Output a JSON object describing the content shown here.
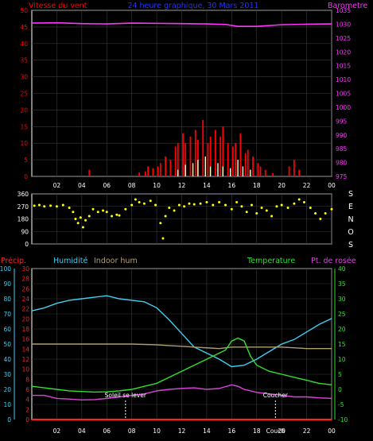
{
  "colors": {
    "background": "#000000",
    "frame": "#ffffff",
    "grid": "#3a3a3a",
    "wind": "#ff0000",
    "wind_gust_light": "#ffffc8",
    "barometer": "#ff33ff",
    "direction": "#ffff00",
    "precip": "#ff2020",
    "humidity": "#40d0f0",
    "indoor_hum": "#b0a070",
    "temperature": "#30e030",
    "dew_point": "#dd44dd",
    "title": "#2233ff",
    "sun_marker": "#ffffff"
  },
  "chart_data": [
    {
      "type": "bar",
      "title": "24 heure graphique, 30 Mars 2011",
      "left_axis_label": "Vitesse du vent",
      "right_axis_label": "Barometre",
      "x_ticks": [
        "02",
        "04",
        "06",
        "08",
        "10",
        "12",
        "14",
        "16",
        "18",
        "20",
        "22",
        "00"
      ],
      "x_range_hours": [
        0,
        24
      ],
      "left_ticks": [
        0,
        5,
        10,
        15,
        20,
        25,
        30,
        35,
        40,
        45,
        50
      ],
      "left_range": [
        0,
        50
      ],
      "right_ticks": [
        975,
        980,
        985,
        990,
        995,
        1000,
        1005,
        1010,
        1015,
        1020,
        1025,
        1030,
        1035
      ],
      "right_range": [
        975,
        1035
      ],
      "series": [
        {
          "name": "Vitesse du vent",
          "points": [
            [
              4.6,
              2
            ],
            [
              8.6,
              1.2
            ],
            [
              9.1,
              1.5
            ],
            [
              9.3,
              3
            ],
            [
              9.7,
              2.5
            ],
            [
              10.1,
              3
            ],
            [
              10.3,
              4
            ],
            [
              10.7,
              6
            ],
            [
              11.1,
              5
            ],
            [
              11.5,
              9
            ],
            [
              11.7,
              10
            ],
            [
              12.1,
              13
            ],
            [
              12.3,
              10
            ],
            [
              12.7,
              12
            ],
            [
              13.1,
              14
            ],
            [
              13.3,
              11
            ],
            [
              13.7,
              17
            ],
            [
              14.1,
              10
            ],
            [
              14.3,
              12
            ],
            [
              14.7,
              14
            ],
            [
              15.1,
              12
            ],
            [
              15.3,
              15
            ],
            [
              15.7,
              10
            ],
            [
              16.1,
              9
            ],
            [
              16.3,
              10
            ],
            [
              16.7,
              13
            ],
            [
              17.1,
              7
            ],
            [
              17.3,
              8
            ],
            [
              17.7,
              6
            ],
            [
              18.1,
              4
            ],
            [
              18.3,
              3
            ],
            [
              18.7,
              2
            ],
            [
              19.3,
              1
            ],
            [
              20.6,
              3
            ],
            [
              21.0,
              5
            ],
            [
              21.4,
              2
            ]
          ]
        },
        {
          "name": "Rafales",
          "points": [
            [
              11.6,
              2
            ],
            [
              12.2,
              3.5
            ],
            [
              12.8,
              4
            ],
            [
              13.2,
              5
            ],
            [
              13.8,
              6
            ],
            [
              14.2,
              3
            ],
            [
              14.8,
              4
            ],
            [
              15.2,
              3
            ],
            [
              15.8,
              2.5
            ],
            [
              16.4,
              5
            ],
            [
              16.8,
              3
            ],
            [
              17.4,
              2
            ]
          ]
        },
        {
          "name": "Barometre",
          "points": [
            [
              0,
              1030.4
            ],
            [
              2,
              1030.5
            ],
            [
              4,
              1030.2
            ],
            [
              6,
              1030.1
            ],
            [
              8,
              1030.4
            ],
            [
              10,
              1030.3
            ],
            [
              12,
              1030.2
            ],
            [
              14,
              1030.1
            ],
            [
              15.5,
              1029.9
            ],
            [
              16.5,
              1029.2
            ],
            [
              18,
              1029.2
            ],
            [
              20,
              1029.8
            ],
            [
              22,
              1030.0
            ],
            [
              24,
              1030.1
            ]
          ]
        }
      ]
    },
    {
      "type": "scatter",
      "right_axis_letters": [
        "S",
        "E",
        "N",
        "O",
        "S"
      ],
      "y_ticks": [
        0,
        90,
        180,
        270,
        360
      ],
      "y_range": [
        0,
        360
      ],
      "x_range_hours": [
        0,
        24
      ],
      "series": [
        {
          "name": "Direction du vent",
          "points": [
            [
              0.2,
              275
            ],
            [
              0.6,
              280
            ],
            [
              1.0,
              270
            ],
            [
              1.5,
              275
            ],
            [
              2.0,
              270
            ],
            [
              2.5,
              280
            ],
            [
              3.0,
              260
            ],
            [
              3.3,
              230
            ],
            [
              3.5,
              180
            ],
            [
              3.7,
              150
            ],
            [
              3.9,
              190
            ],
            [
              4.1,
              120
            ],
            [
              4.3,
              170
            ],
            [
              4.6,
              200
            ],
            [
              4.9,
              250
            ],
            [
              5.3,
              230
            ],
            [
              5.7,
              240
            ],
            [
              6.0,
              230
            ],
            [
              6.4,
              200
            ],
            [
              6.8,
              210
            ],
            [
              7.0,
              205
            ],
            [
              7.5,
              250
            ],
            [
              8.0,
              280
            ],
            [
              8.3,
              320
            ],
            [
              8.6,
              300
            ],
            [
              9.0,
              290
            ],
            [
              9.5,
              310
            ],
            [
              9.9,
              280
            ],
            [
              10.3,
              150
            ],
            [
              10.5,
              40
            ],
            [
              10.7,
              200
            ],
            [
              11.0,
              260
            ],
            [
              11.4,
              240
            ],
            [
              11.8,
              280
            ],
            [
              12.2,
              270
            ],
            [
              12.6,
              290
            ],
            [
              13.0,
              285
            ],
            [
              13.5,
              290
            ],
            [
              14.0,
              300
            ],
            [
              14.5,
              280
            ],
            [
              15.0,
              300
            ],
            [
              15.5,
              280
            ],
            [
              16.0,
              250
            ],
            [
              16.4,
              300
            ],
            [
              16.8,
              270
            ],
            [
              17.2,
              230
            ],
            [
              17.6,
              280
            ],
            [
              18.0,
              220
            ],
            [
              18.4,
              260
            ],
            [
              18.8,
              240
            ],
            [
              19.2,
              200
            ],
            [
              19.6,
              270
            ],
            [
              20.0,
              280
            ],
            [
              20.5,
              260
            ],
            [
              21.0,
              290
            ],
            [
              21.4,
              320
            ],
            [
              21.8,
              300
            ],
            [
              22.3,
              260
            ],
            [
              22.7,
              220
            ],
            [
              23.1,
              180
            ],
            [
              23.5,
              220
            ],
            [
              24.0,
              250
            ]
          ]
        }
      ]
    },
    {
      "type": "line",
      "x_ticks": [
        "02",
        "04",
        "06",
        "08",
        "10",
        "12",
        "14",
        "16",
        "18",
        "20",
        "22",
        "00"
      ],
      "x_range_hours": [
        0,
        24
      ],
      "labels": {
        "precip": "Précip.",
        "humidity": "Humidité",
        "indoor_hum": "Indoor hum",
        "temperature": "Temperature",
        "dew_point": "Pt. de rosée"
      },
      "axes": {
        "humidity_ticks": [
          0,
          10,
          20,
          30,
          40,
          50,
          60,
          70,
          80,
          90,
          100
        ],
        "humidity_range": [
          0,
          100
        ],
        "precip_ticks": [
          0,
          2,
          4,
          6,
          8,
          10,
          12,
          14,
          16,
          18,
          20,
          22,
          24,
          26,
          28,
          30
        ],
        "precip_range": [
          0,
          30
        ],
        "temperature_ticks": [
          -10,
          -5,
          0,
          5,
          10,
          15,
          20,
          25,
          30,
          35,
          40
        ],
        "temperature_range": [
          -10,
          40
        ]
      },
      "annotations": [
        {
          "text": "Soleil se lever",
          "x": 7.5
        },
        {
          "text": "Coucher",
          "x": 19.5
        }
      ],
      "x_label_extra": {
        "text": "Couch",
        "x": 19.5
      },
      "series": [
        {
          "name": "Humidité",
          "axis": "humidity",
          "points": [
            [
              0,
              72
            ],
            [
              1,
              74
            ],
            [
              2,
              77
            ],
            [
              3,
              79
            ],
            [
              4,
              80
            ],
            [
              5,
              81
            ],
            [
              6,
              82
            ],
            [
              7,
              80
            ],
            [
              8,
              79
            ],
            [
              9,
              78
            ],
            [
              10,
              74
            ],
            [
              11,
              66
            ],
            [
              12,
              57
            ],
            [
              13,
              48
            ],
            [
              14,
              44
            ],
            [
              15,
              40
            ],
            [
              16,
              35
            ],
            [
              17,
              36
            ],
            [
              18,
              40
            ],
            [
              19,
              45
            ],
            [
              20,
              50
            ],
            [
              21,
              53
            ],
            [
              22,
              58
            ],
            [
              23,
              63
            ],
            [
              24,
              67
            ]
          ]
        },
        {
          "name": "Indoor hum",
          "axis": "humidity",
          "points": [
            [
              0,
              50
            ],
            [
              2,
              50
            ],
            [
              4,
              50
            ],
            [
              6,
              50
            ],
            [
              8,
              50
            ],
            [
              10,
              49.5
            ],
            [
              11,
              49
            ],
            [
              12,
              48.5
            ],
            [
              13,
              48
            ],
            [
              14,
              47.5
            ],
            [
              15,
              47
            ],
            [
              16,
              48
            ],
            [
              18,
              48
            ],
            [
              20,
              48
            ],
            [
              22,
              47
            ],
            [
              24,
              47
            ]
          ]
        },
        {
          "name": "Temperature",
          "axis": "temperature",
          "points": [
            [
              0,
              1
            ],
            [
              1,
              0.5
            ],
            [
              2,
              0
            ],
            [
              3,
              -0.5
            ],
            [
              4,
              -0.7
            ],
            [
              5,
              -0.9
            ],
            [
              6,
              -0.8
            ],
            [
              7,
              -0.5
            ],
            [
              8,
              0
            ],
            [
              9,
              1
            ],
            [
              10,
              2
            ],
            [
              11,
              4
            ],
            [
              12,
              6
            ],
            [
              13,
              8
            ],
            [
              14,
              10
            ],
            [
              15,
              12
            ],
            [
              15.5,
              13
            ],
            [
              16,
              16
            ],
            [
              16.5,
              17
            ],
            [
              17,
              16
            ],
            [
              17.5,
              11
            ],
            [
              18,
              8
            ],
            [
              19,
              6
            ],
            [
              20,
              5
            ],
            [
              21,
              4
            ],
            [
              22,
              3
            ],
            [
              23,
              2
            ],
            [
              24,
              1.5
            ]
          ]
        },
        {
          "name": "Pt. de rosée",
          "axis": "temperature",
          "points": [
            [
              0,
              -2
            ],
            [
              1,
              -2
            ],
            [
              2,
              -3
            ],
            [
              3,
              -3.2
            ],
            [
              4,
              -3.5
            ],
            [
              5,
              -3.4
            ],
            [
              6,
              -3
            ],
            [
              7,
              -2.5
            ],
            [
              8,
              -2
            ],
            [
              9,
              -1.5
            ],
            [
              10,
              -0.5
            ],
            [
              11,
              0
            ],
            [
              12,
              0.3
            ],
            [
              13,
              0.5
            ],
            [
              14,
              0
            ],
            [
              15,
              0.3
            ],
            [
              16,
              1.5
            ],
            [
              16.5,
              1
            ],
            [
              17,
              0
            ],
            [
              18,
              -1
            ],
            [
              19,
              -1.5
            ],
            [
              20,
              -2
            ],
            [
              21,
              -2.5
            ],
            [
              22,
              -2.5
            ],
            [
              23,
              -2.8
            ],
            [
              24,
              -3
            ]
          ]
        },
        {
          "name": "Précip.",
          "axis": "precip",
          "points": [
            [
              0,
              0
            ],
            [
              24,
              0
            ]
          ]
        }
      ]
    }
  ]
}
